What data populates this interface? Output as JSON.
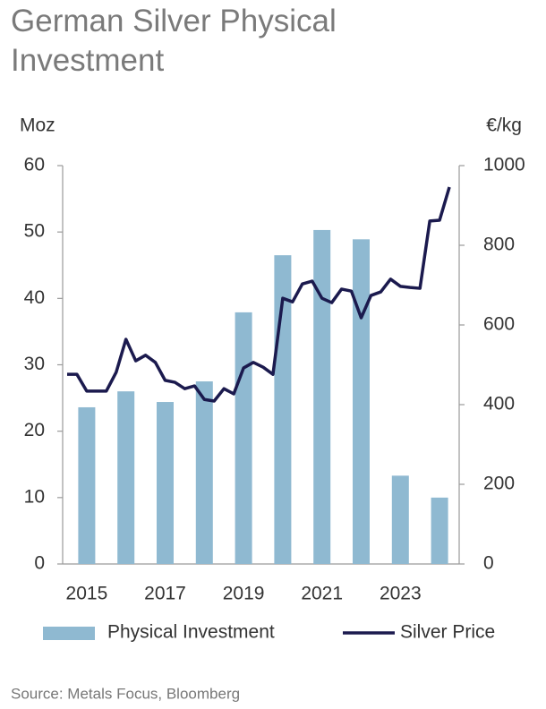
{
  "chart_data": {
    "type": "bar",
    "title": "German Silver Physical Investment",
    "y_label": "Moz",
    "y2_label": "€/kg",
    "source": "Source: Metals Focus, Bloomberg",
    "categories": [
      "2015",
      null,
      "2017",
      null,
      "2019",
      null,
      "2021",
      null,
      "2023",
      null
    ],
    "ylim": [
      0,
      60
    ],
    "yticks": [
      0,
      10,
      20,
      30,
      40,
      50,
      60
    ],
    "y2lim": [
      0,
      1000
    ],
    "y2ticks": [
      0,
      200,
      400,
      600,
      800,
      1000
    ],
    "xlim": [
      2015,
      2025
    ],
    "series": [
      {
        "name": "Physical Investment",
        "type": "bar",
        "color": "#8fb9d1",
        "values": [
          23.6,
          26,
          24.4,
          27.5,
          37.9,
          46.5,
          50.3,
          48.9,
          13.3,
          10
        ]
      },
      {
        "name": "Silver Price",
        "type": "line",
        "axis": "y2",
        "color": "#1b1a4e",
        "x": [
          2015,
          2015.25,
          2015.5,
          2015.75,
          2016,
          2016.25,
          2016.5,
          2016.75,
          2017,
          2017.25,
          2017.5,
          2017.75,
          2018,
          2018.25,
          2018.5,
          2018.75,
          2019,
          2019.25,
          2019.5,
          2019.75,
          2020,
          2020.25,
          2020.5,
          2020.75,
          2021,
          2021.25,
          2021.5,
          2021.75,
          2022,
          2022.25,
          2022.5,
          2022.75,
          2023,
          2023.25,
          2023.5,
          2023.75,
          2024,
          2024.25,
          2024.5,
          2024.75
        ],
        "values": [
          476,
          476,
          434,
          434,
          434,
          481,
          564,
          510,
          524,
          506,
          461,
          456,
          440,
          447,
          413,
          409,
          440,
          427,
          492,
          506,
          494,
          476,
          667,
          658,
          703,
          710,
          667,
          656,
          690,
          685,
          618,
          674,
          683,
          715,
          697,
          694,
          692,
          861,
          863,
          946
        ]
      }
    ]
  }
}
